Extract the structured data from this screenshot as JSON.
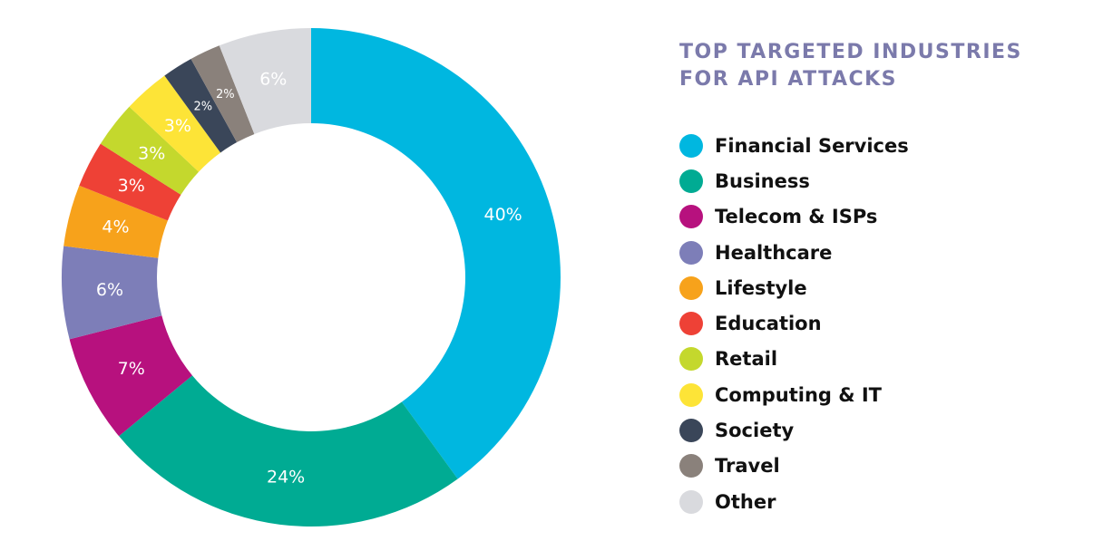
{
  "chart_data": {
    "type": "pie",
    "title": "TOP TARGETED INDUSTRIES FOR API ATTACKS",
    "legend_position": "right",
    "categories": [
      "Financial Services",
      "Business",
      "Telecom & ISPs",
      "Healthcare",
      "Lifestyle",
      "Education",
      "Retail",
      "Computing & IT",
      "Society",
      "Travel",
      "Other"
    ],
    "values": [
      40,
      24,
      7,
      6,
      4,
      3,
      3,
      3,
      2,
      2,
      6
    ],
    "data_labels": [
      "40%",
      "24%",
      "7%",
      "6%",
      "4%",
      "3%",
      "3%",
      "3%",
      "2%",
      "2%",
      "6%"
    ],
    "colors": [
      "#00b7e0",
      "#00ab93",
      "#b7117e",
      "#7d7eb8",
      "#f7a21b",
      "#ee4136",
      "#c4d82d",
      "#fde437",
      "#3a4659",
      "#8a817b",
      "#d9dade"
    ]
  }
}
